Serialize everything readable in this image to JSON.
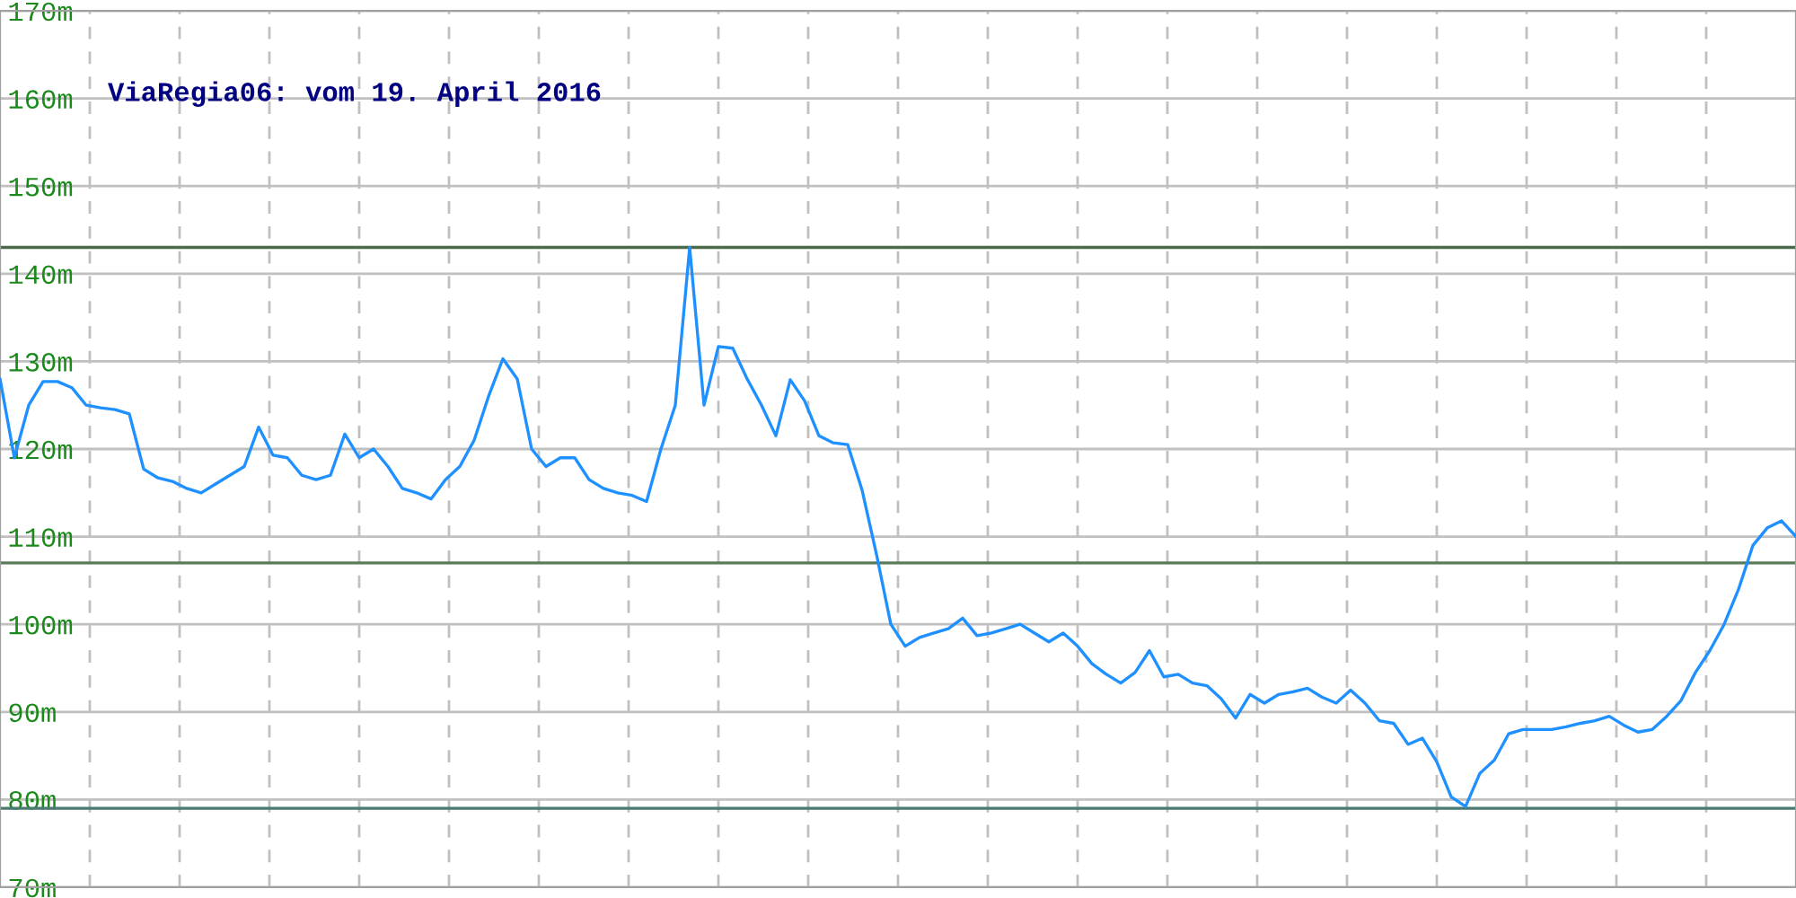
{
  "chart_data": {
    "type": "line",
    "title": "ViaRegia06: vom 19. April 2016",
    "categories": [
      null,
      null,
      null,
      null,
      null,
      null,
      null,
      null,
      null,
      null,
      null,
      null,
      null,
      null,
      null,
      null,
      null,
      null,
      null,
      null,
      null,
      null,
      null,
      null,
      null,
      null,
      null,
      null,
      null,
      null,
      null,
      null,
      null,
      null,
      null,
      null,
      null,
      null,
      null,
      null,
      null,
      null,
      null,
      null,
      null,
      null,
      null,
      null,
      null,
      null,
      null,
      null,
      null,
      null,
      null,
      null,
      null,
      null,
      null,
      null,
      null,
      null,
      null,
      null,
      null,
      null,
      null,
      null,
      null,
      null,
      null,
      null,
      null,
      null,
      null,
      null,
      null,
      null,
      null,
      null,
      null,
      null,
      null,
      null,
      null,
      null,
      null,
      null,
      null,
      null,
      null,
      null,
      null,
      null,
      null,
      null,
      null,
      null,
      null,
      null,
      null,
      null,
      null,
      null,
      null,
      null,
      null,
      null,
      null,
      null,
      null,
      null,
      null,
      null,
      null,
      null,
      null,
      null,
      null,
      null,
      null,
      null,
      null,
      null,
      null,
      null
    ],
    "series": [
      {
        "color": "#1e90ff",
        "values": [
          128,
          119,
          125,
          127.7,
          127.7,
          127,
          125,
          124.7,
          124.5,
          124,
          117.7,
          116.7,
          116.3,
          115.5,
          115,
          116,
          117,
          118,
          122.5,
          119.3,
          119,
          117,
          116.5,
          117,
          121.7,
          119,
          120,
          118,
          115.5,
          115,
          114.3,
          116.5,
          118,
          121,
          126,
          130.3,
          128,
          120,
          118,
          119,
          119,
          116.5,
          115.5,
          115,
          114.7,
          114,
          120,
          125,
          143,
          125,
          131.7,
          131.5,
          128,
          125,
          121.5,
          127.9,
          125.5,
          121.5,
          120.7,
          120.5,
          115.3,
          108,
          100,
          97.5,
          98.5,
          99,
          99.5,
          100.7,
          98.7,
          99,
          99.5,
          100,
          99,
          98,
          99,
          97.5,
          95.5,
          94.3,
          93.3,
          94.5,
          97,
          94,
          94.3,
          93.3,
          93,
          91.5,
          89.3,
          92,
          91,
          92,
          92.3,
          92.7,
          91.7,
          91,
          92.5,
          91,
          89,
          88.7,
          86.3,
          87,
          84.3,
          80.3,
          79.2,
          83,
          84.5,
          87.5,
          88,
          88,
          88,
          88.3,
          88.7,
          89,
          89.5,
          88.5,
          87.7,
          88,
          89.5,
          91.3,
          94.5,
          97,
          100,
          104,
          109,
          111,
          111.8,
          110
        ]
      }
    ],
    "ylim": [
      70,
      170
    ],
    "yticks": [
      {
        "value": 70,
        "label": "70m"
      },
      {
        "value": 80,
        "label": "80m"
      },
      {
        "value": 90,
        "label": "90m"
      },
      {
        "value": 100,
        "label": "100m"
      },
      {
        "value": 110,
        "label": "110m"
      },
      {
        "value": 120,
        "label": "120m"
      },
      {
        "value": 130,
        "label": "130m"
      },
      {
        "value": 140,
        "label": "140m"
      },
      {
        "value": 150,
        "label": "150m"
      },
      {
        "value": 160,
        "label": "160m"
      },
      {
        "value": 170,
        "label": "170m"
      }
    ],
    "ref_lines": [
      {
        "axis": "y",
        "value": 143,
        "color": "#4a6a4a"
      },
      {
        "axis": "y",
        "value": 107,
        "color": "#5a7a5a"
      },
      {
        "axis": "y",
        "value": 79,
        "color": "#4a7a70"
      }
    ],
    "grid": true,
    "tick_labels": "y",
    "line_style": "solid",
    "marker": "none"
  }
}
